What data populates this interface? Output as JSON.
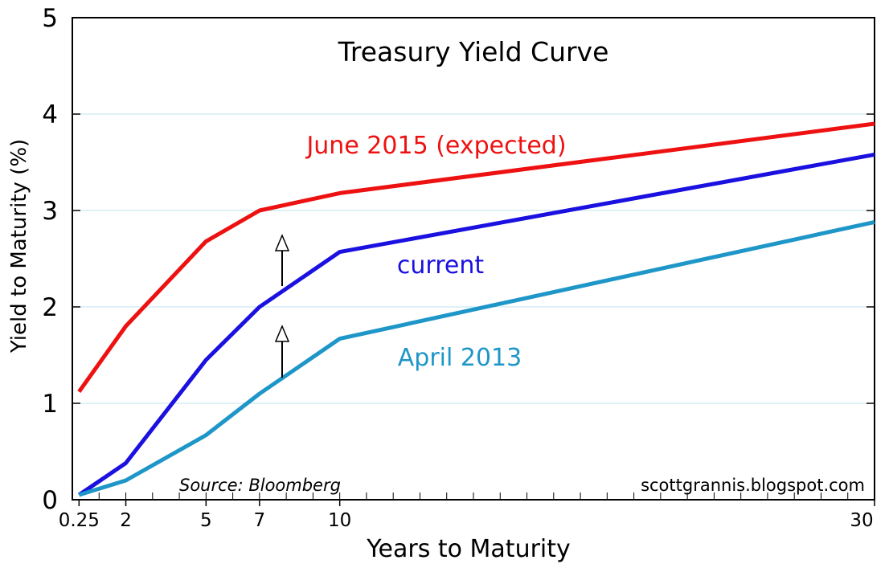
{
  "chart_data": {
    "type": "line",
    "title": "Treasury Yield Curve",
    "xlabel": "Years to Maturity",
    "ylabel": "Yield to Maturity (%)",
    "xlim": [
      0,
      30
    ],
    "ylim": [
      0,
      5
    ],
    "x_tick_labels": [
      "0.25",
      "2",
      "5",
      "7",
      "10",
      "30"
    ],
    "y_tick_labels": [
      "0",
      "1",
      "2",
      "3",
      "4",
      "5"
    ],
    "grid": "horizontal",
    "source": "Source:  Bloomberg",
    "credit": "scottgrannis.blogspot.com",
    "series": [
      {
        "name": "June 2015 (expected)",
        "color": "#ee1111",
        "x": [
          0.25,
          2,
          5,
          7,
          10,
          30
        ],
        "values": [
          1.12,
          1.8,
          2.68,
          3.0,
          3.18,
          3.9
        ]
      },
      {
        "name": "current",
        "color": "#1a10e0",
        "x": [
          0.25,
          2,
          5,
          7,
          10,
          30
        ],
        "values": [
          0.05,
          0.38,
          1.45,
          2.0,
          2.57,
          3.58
        ]
      },
      {
        "name": "April 2013",
        "color": "#1e96c8",
        "x": [
          0.25,
          2,
          5,
          7,
          10,
          30
        ],
        "values": [
          0.05,
          0.2,
          0.67,
          1.1,
          1.67,
          2.88
        ]
      }
    ]
  }
}
